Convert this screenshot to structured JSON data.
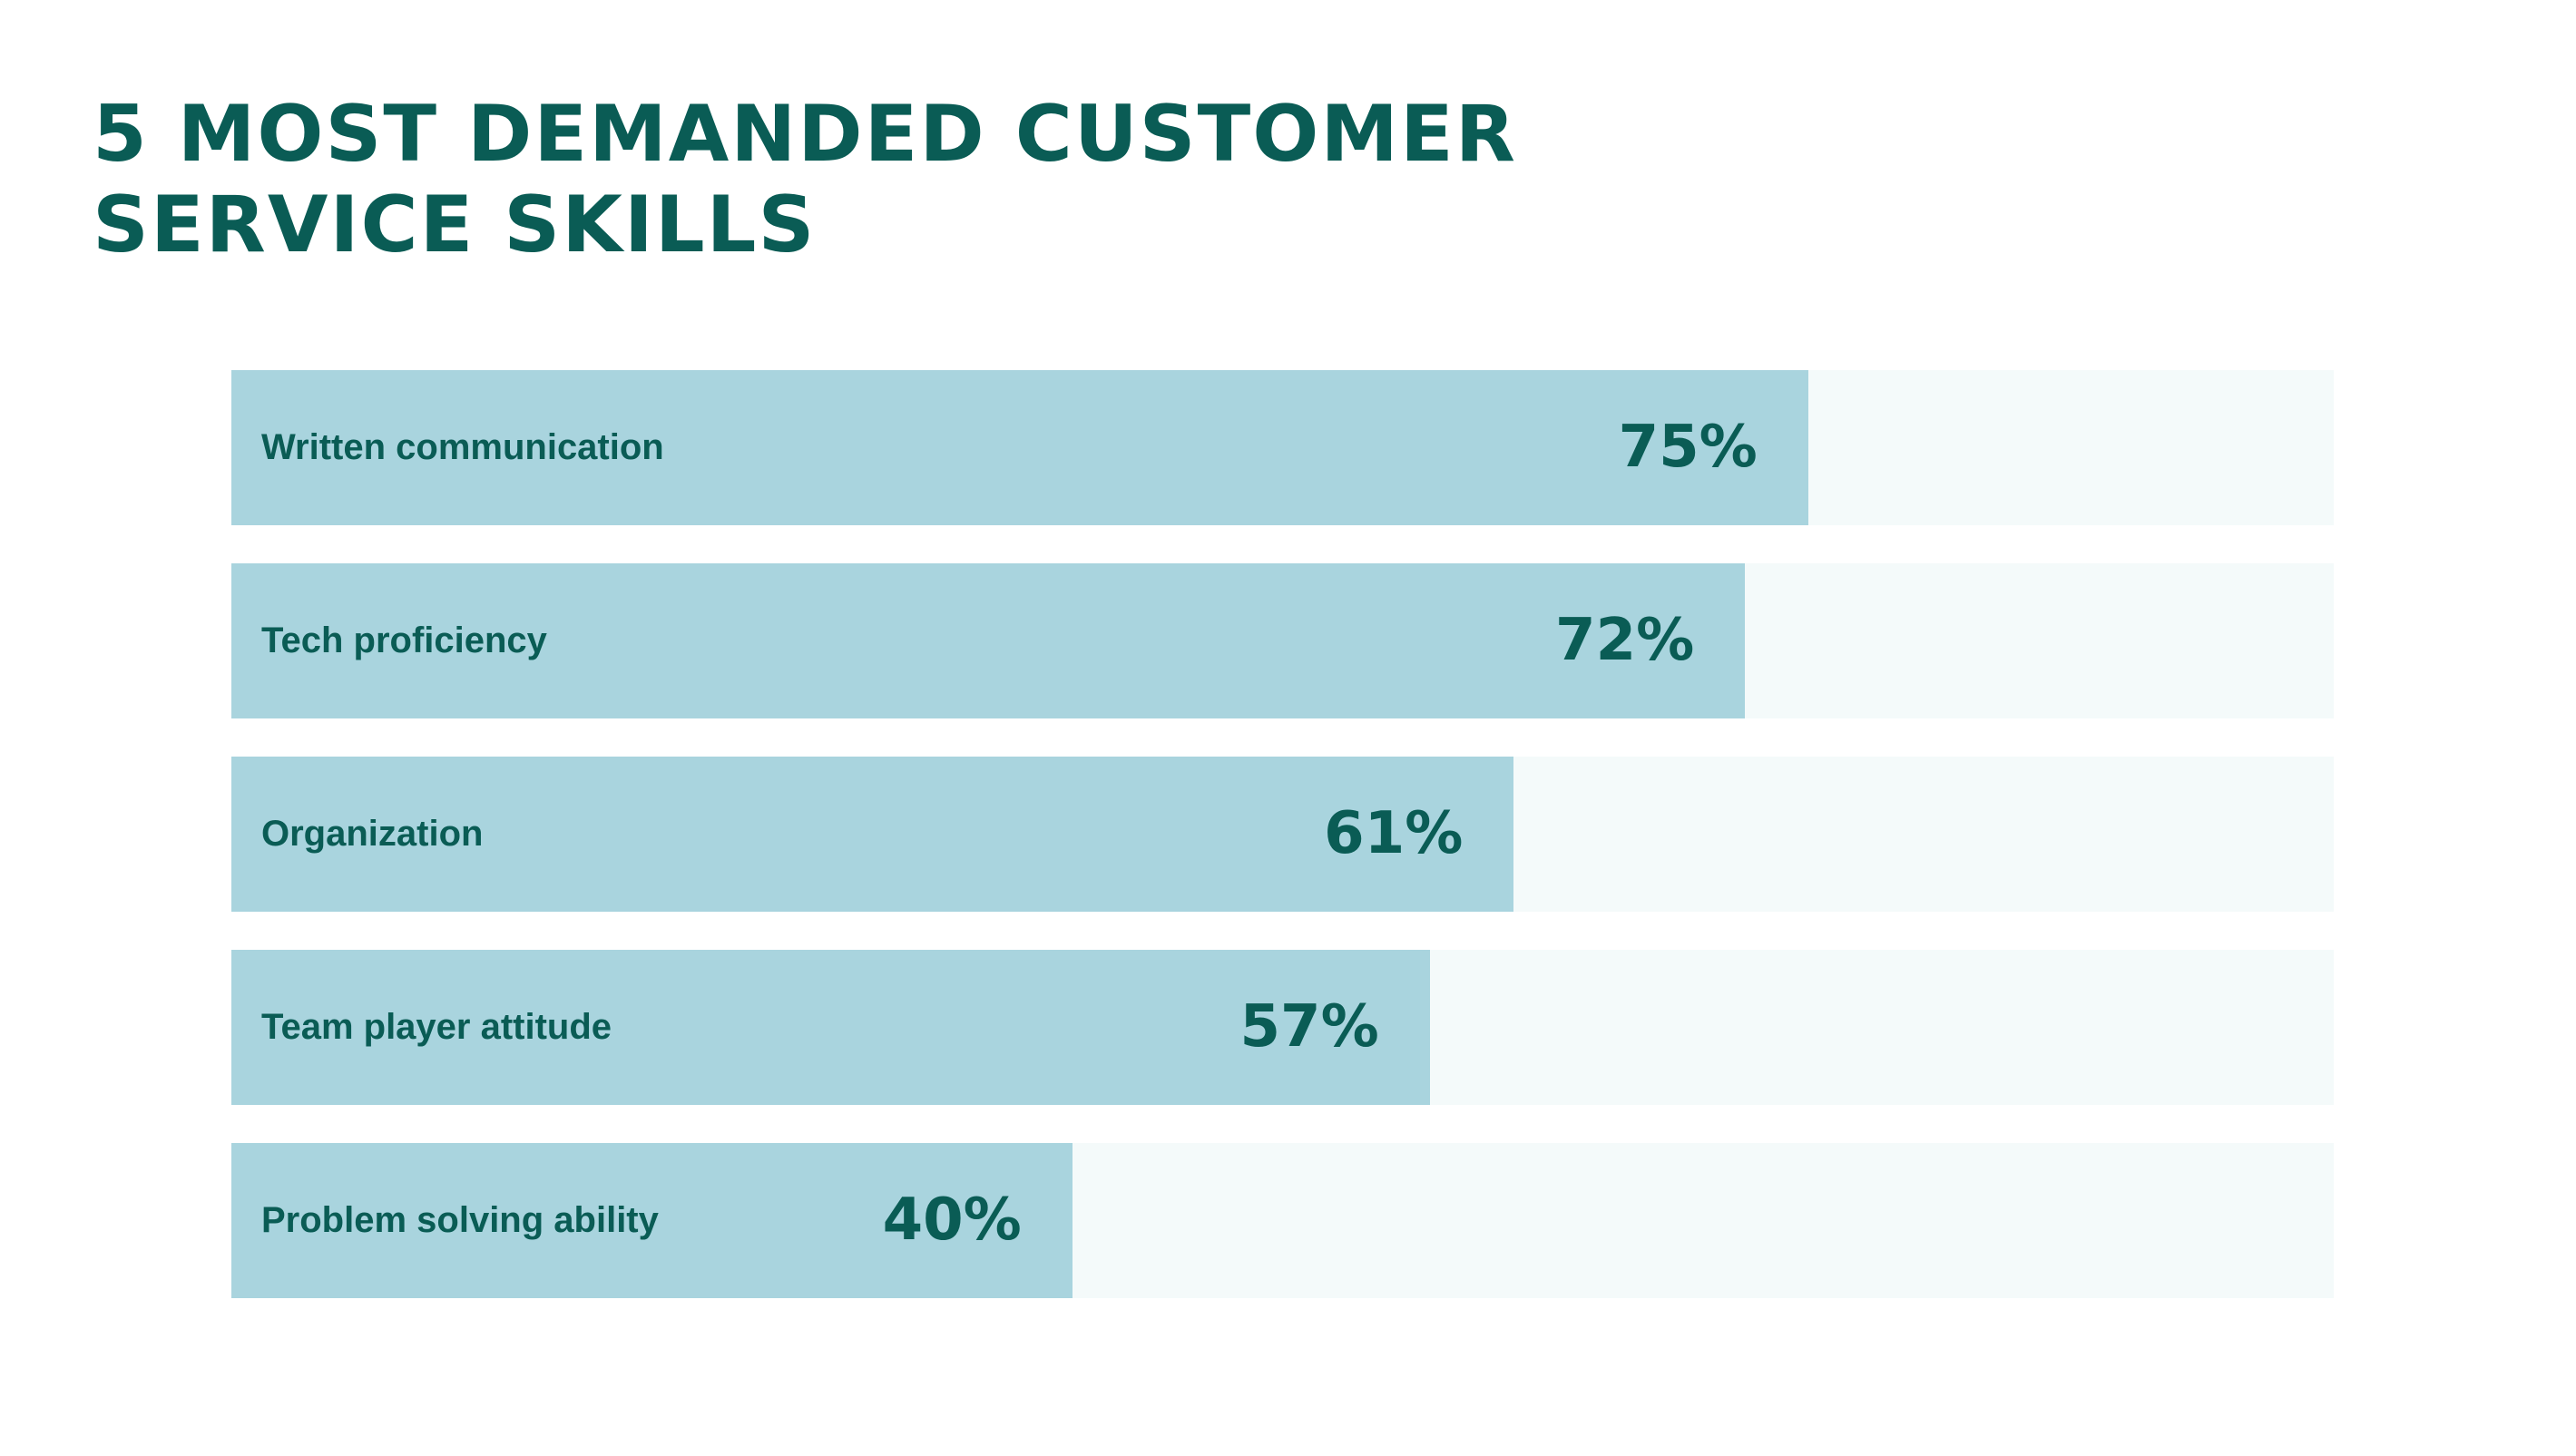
{
  "chart_data": {
    "type": "bar",
    "orientation": "horizontal",
    "title": "5 MOST DEMANDED CUSTOMER SERVICE SKILLS",
    "title_lines": [
      "5 MOST DEMANDED CUSTOMER",
      "SERVICE SKILLS"
    ],
    "categories": [
      "Written communication",
      "Tech proficiency",
      "Organization",
      "Team player attitude",
      "Problem solving ability"
    ],
    "values": [
      75,
      72,
      61,
      57,
      40
    ],
    "value_labels": [
      "75%",
      "72%",
      "61%",
      "57%",
      "40%"
    ],
    "xlim": [
      0,
      100
    ],
    "grid": false,
    "legend": "none",
    "colors": {
      "bar": "#a9d4de",
      "track": "#f4fafa",
      "text": "#0a5c55"
    }
  }
}
